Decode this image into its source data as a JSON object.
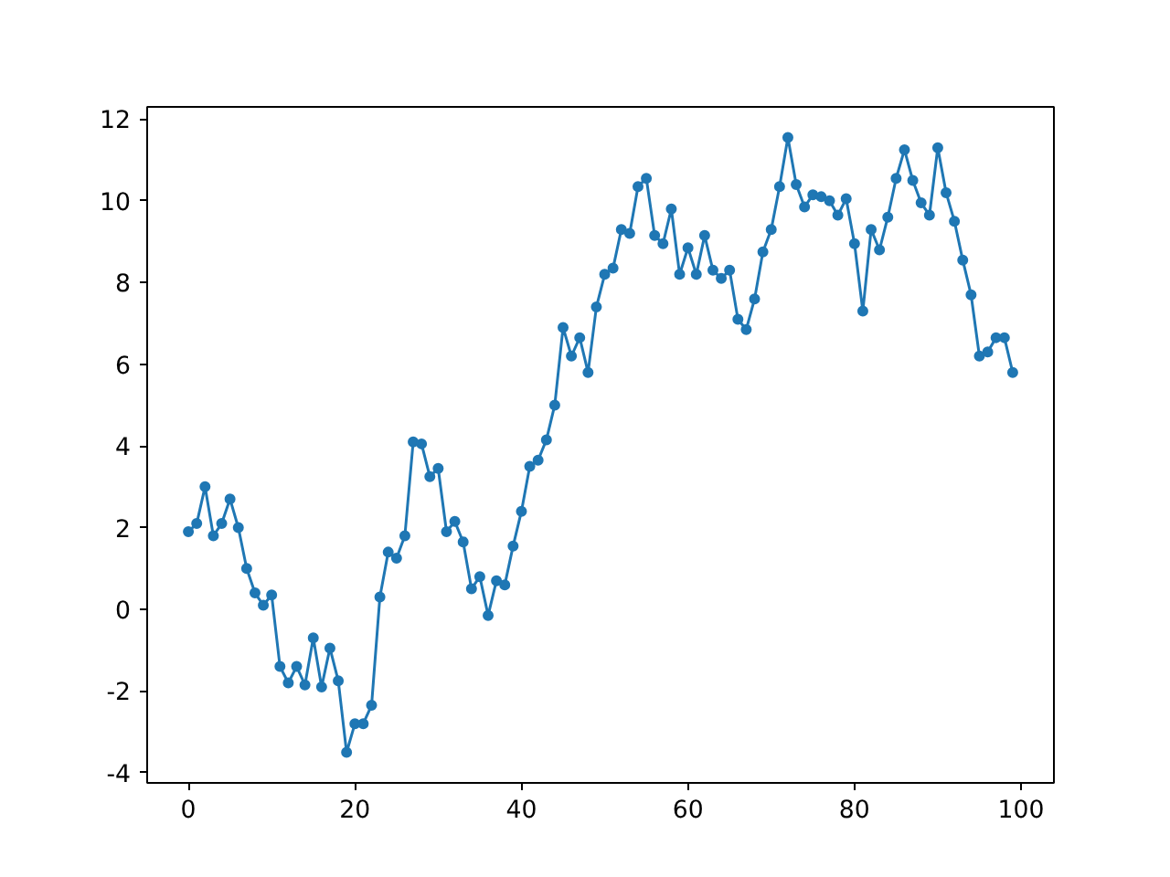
{
  "chart_data": {
    "type": "line",
    "x": [
      0,
      1,
      2,
      3,
      4,
      5,
      6,
      7,
      8,
      9,
      10,
      11,
      12,
      13,
      14,
      15,
      16,
      17,
      18,
      19,
      20,
      21,
      22,
      23,
      24,
      25,
      26,
      27,
      28,
      29,
      30,
      31,
      32,
      33,
      34,
      35,
      36,
      37,
      38,
      39,
      40,
      41,
      42,
      43,
      44,
      45,
      46,
      47,
      48,
      49,
      50,
      51,
      52,
      53,
      54,
      55,
      56,
      57,
      58,
      59,
      60,
      61,
      62,
      63,
      64,
      65,
      66,
      67,
      68,
      69,
      70,
      71,
      72,
      73,
      74,
      75,
      76,
      77,
      78,
      79,
      80,
      81,
      82,
      83,
      84,
      85,
      86,
      87,
      88,
      89,
      90,
      91,
      92,
      93,
      94,
      95,
      96,
      97,
      98,
      99
    ],
    "series": [
      {
        "color": "#1f77b4",
        "values": [
          1.9,
          2.1,
          3.0,
          1.8,
          2.1,
          2.7,
          2.0,
          1.0,
          0.4,
          0.1,
          0.35,
          -1.4,
          -1.8,
          -1.4,
          -1.85,
          -0.7,
          -1.9,
          -0.95,
          -1.75,
          -3.5,
          -2.8,
          -2.8,
          -2.35,
          0.3,
          1.4,
          1.25,
          1.8,
          4.1,
          4.05,
          3.25,
          3.45,
          1.9,
          2.15,
          1.65,
          0.5,
          0.8,
          -0.15,
          0.7,
          0.6,
          1.55,
          2.4,
          3.5,
          3.65,
          4.15,
          5.0,
          6.9,
          6.2,
          6.65,
          5.8,
          7.4,
          8.2,
          8.35,
          9.3,
          9.2,
          10.35,
          10.55,
          9.15,
          8.95,
          9.8,
          8.2,
          8.85,
          8.2,
          9.15,
          8.3,
          8.1,
          8.3,
          7.1,
          6.85,
          7.6,
          8.75,
          9.3,
          10.35,
          11.55,
          10.4,
          9.85,
          10.15,
          10.1,
          10.0,
          9.65,
          10.05,
          8.95,
          7.3,
          9.3,
          8.8,
          9.6,
          10.55,
          11.25,
          10.5,
          9.95,
          9.65,
          11.3,
          10.2,
          9.5,
          8.55,
          7.7,
          6.2,
          6.3,
          6.65,
          6.65,
          5.8
        ]
      }
    ],
    "xlim": [
      -4.95,
      103.95
    ],
    "ylim": [
      -4.25,
      12.3
    ],
    "xticks": [
      0,
      20,
      40,
      60,
      80,
      100
    ],
    "yticks": [
      -4,
      -2,
      0,
      2,
      4,
      6,
      8,
      10,
      12
    ],
    "marker": "circle",
    "line_style": "solid",
    "grid": false
  }
}
